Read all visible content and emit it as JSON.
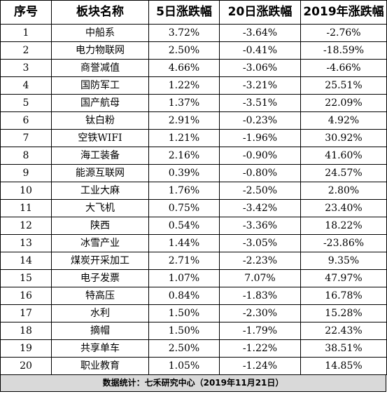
{
  "header": {
    "col_index": "序号",
    "col_sector": "板块名称",
    "col_5d": "5日涨跌幅",
    "col_20d": "20日涨跌幅",
    "col_2019": "2019年涨跌幅"
  },
  "rows": [
    {
      "idx": "1",
      "name": "中船系",
      "d5": "3.72%",
      "d20": "-3.64%",
      "y2019": "-2.76%"
    },
    {
      "idx": "2",
      "name": "电力物联网",
      "d5": "2.50%",
      "d20": "-0.41%",
      "y2019": "-18.59%"
    },
    {
      "idx": "3",
      "name": "商誉减值",
      "d5": "4.66%",
      "d20": "-3.06%",
      "y2019": "-4.66%"
    },
    {
      "idx": "4",
      "name": "国防军工",
      "d5": "1.22%",
      "d20": "-3.21%",
      "y2019": "25.51%"
    },
    {
      "idx": "5",
      "name": "国产航母",
      "d5": "1.37%",
      "d20": "-3.51%",
      "y2019": "22.09%"
    },
    {
      "idx": "6",
      "name": "钛白粉",
      "d5": "2.91%",
      "d20": "-0.23%",
      "y2019": "4.92%"
    },
    {
      "idx": "7",
      "name": "空铁WIFI",
      "d5": "1.21%",
      "d20": "-1.96%",
      "y2019": "30.92%"
    },
    {
      "idx": "8",
      "name": "海工装备",
      "d5": "2.16%",
      "d20": "-0.90%",
      "y2019": "41.60%"
    },
    {
      "idx": "9",
      "name": "能源互联网",
      "d5": "0.39%",
      "d20": "-0.80%",
      "y2019": "24.57%"
    },
    {
      "idx": "10",
      "name": "工业大麻",
      "d5": "1.76%",
      "d20": "-2.50%",
      "y2019": "2.80%"
    },
    {
      "idx": "11",
      "name": "大飞机",
      "d5": "0.75%",
      "d20": "-3.42%",
      "y2019": "23.40%"
    },
    {
      "idx": "12",
      "name": "陕西",
      "d5": "0.54%",
      "d20": "-3.36%",
      "y2019": "18.22%"
    },
    {
      "idx": "13",
      "name": "冰雪产业",
      "d5": "1.44%",
      "d20": "-3.05%",
      "y2019": "-23.86%"
    },
    {
      "idx": "14",
      "name": "煤炭开采加工",
      "d5": "2.71%",
      "d20": "-2.23%",
      "y2019": "9.35%"
    },
    {
      "idx": "15",
      "name": "电子发票",
      "d5": "1.07%",
      "d20": "7.07%",
      "y2019": "47.97%"
    },
    {
      "idx": "16",
      "name": "特高压",
      "d5": "0.84%",
      "d20": "-1.83%",
      "y2019": "16.78%"
    },
    {
      "idx": "17",
      "name": "水利",
      "d5": "1.50%",
      "d20": "-2.30%",
      "y2019": "15.28%"
    },
    {
      "idx": "18",
      "name": "摘帽",
      "d5": "1.50%",
      "d20": "-1.79%",
      "y2019": "22.43%"
    },
    {
      "idx": "19",
      "name": "共享单车",
      "d5": "2.50%",
      "d20": "-1.22%",
      "y2019": "38.51%"
    },
    {
      "idx": "20",
      "name": "职业教育",
      "d5": "1.05%",
      "d20": "-1.24%",
      "y2019": "14.85%"
    }
  ],
  "footer": {
    "source": "数据统计：七禾研究中心（2019年11月21日）"
  },
  "colors": {
    "border": "#000000",
    "footer_bg": "#d9d9d9"
  }
}
